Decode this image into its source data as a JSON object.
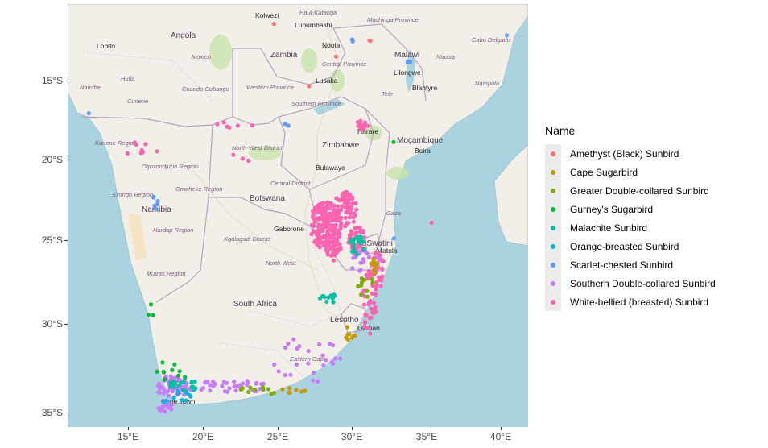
{
  "legend": {
    "title": "Name",
    "items": [
      {
        "label": "Amethyst (Black) Sunbird",
        "color": "#F8766D"
      },
      {
        "label": "Cape Sugarbird",
        "color": "#C49A00"
      },
      {
        "label": "Greater Double-collared Sunbird",
        "color": "#7CAE00"
      },
      {
        "label": "Gurney's Sugarbird",
        "color": "#00BA38"
      },
      {
        "label": "Malachite Sunbird",
        "color": "#00BFA4"
      },
      {
        "label": "Orange-breasted Sunbird",
        "color": "#00B4EF"
      },
      {
        "label": "Scarlet-chested Sunbird",
        "color": "#619CFF"
      },
      {
        "label": "Southern Double-collared Sunbird",
        "color": "#C77CFF"
      },
      {
        "label": "White-bellied (breasted) Sunbird",
        "color": "#FF64B0"
      }
    ]
  },
  "axes": {
    "x_ticks": [
      "15°E",
      "20°E",
      "25°E",
      "30°E",
      "35°E",
      "40°E"
    ],
    "y_ticks": [
      "15°S",
      "20°S",
      "25°S",
      "30°S",
      "35°S"
    ]
  },
  "map_labels": {
    "countries": [
      "Angola",
      "Zambia",
      "Malawi",
      "Namibia",
      "Botswana",
      "Zimbabwe",
      "Moçambique",
      "South Africa",
      "Lesotho",
      "eSwatini"
    ],
    "cities": [
      "Kolwezi",
      "Lubumbashi",
      "Ndola",
      "Lobito",
      "Lusaka",
      "Lilongwe",
      "Blantyre",
      "Harare",
      "Beira",
      "Bulawayo",
      "Gaborone",
      "Matola",
      "Durban",
      "Cape Town"
    ],
    "regions": [
      "Haut-Katanga",
      "Muchinga Province",
      "Cabo Delgado",
      "Central Province",
      "Moxico",
      "Niassa",
      "Huíla",
      "Namibe",
      "Cuando Cubango",
      "Western Province",
      "Southern Province",
      "Nampula",
      "Cunene",
      "Tete",
      "Kunene Region",
      "Otjozondjupa Region",
      "North-West District",
      "Central District",
      "Omaheke Region",
      "Erongo Region",
      "Hardap Region",
      "Kgalagadi District",
      "North West",
      "Gaza",
      "ǁKaras Region",
      "Eastern Cape"
    ]
  },
  "colors": {
    "ocean": "#aad3df",
    "land": "#f2efe9"
  }
}
